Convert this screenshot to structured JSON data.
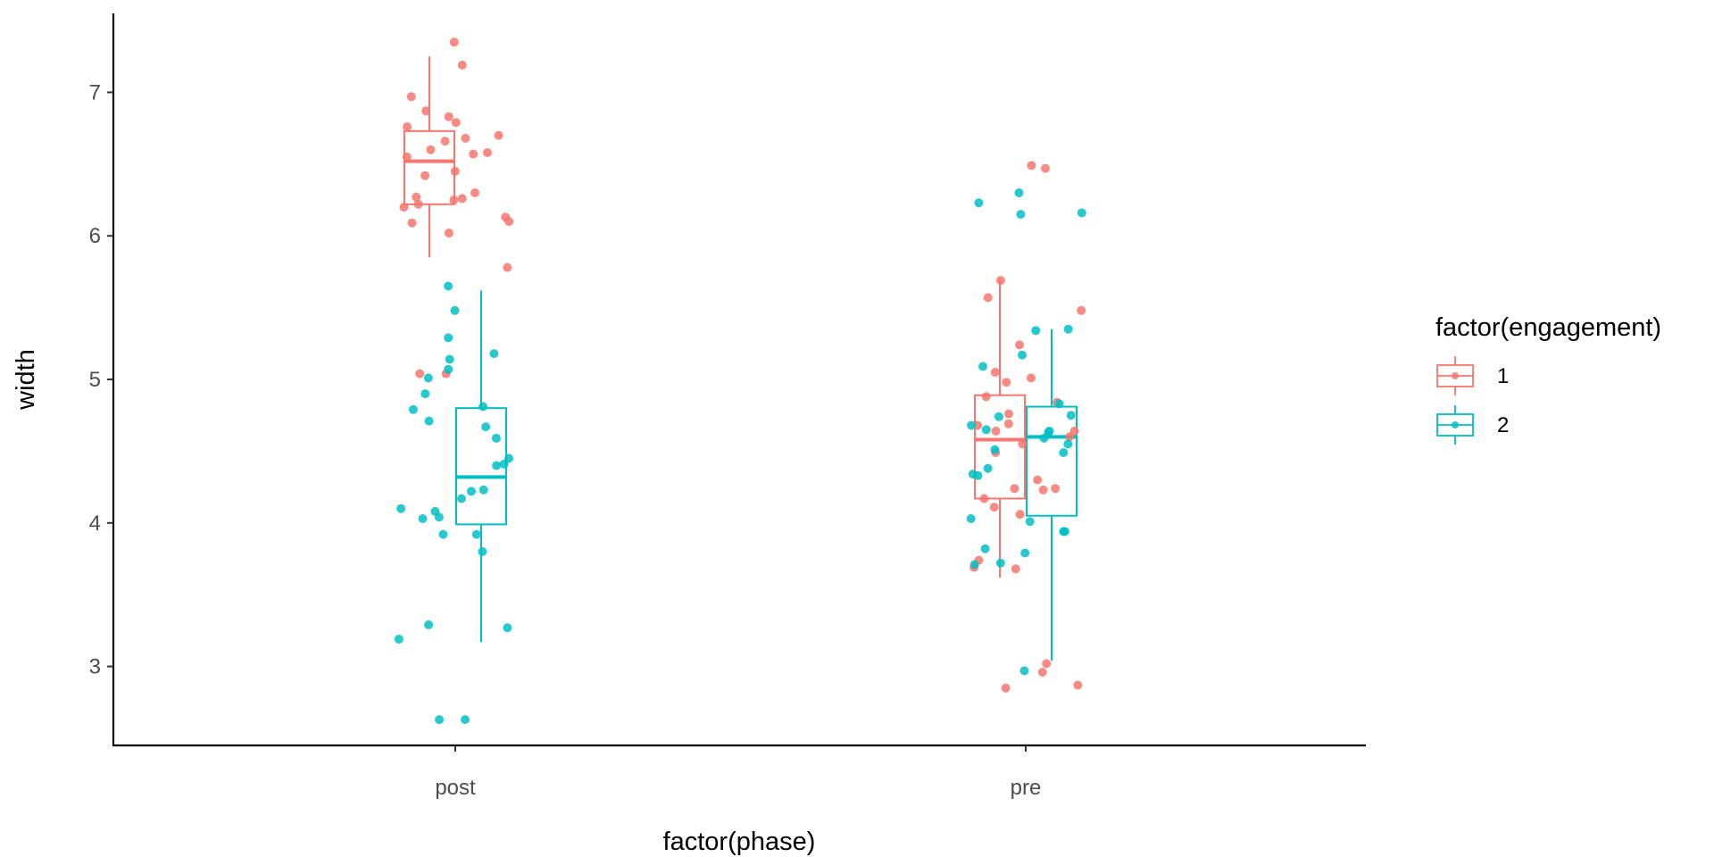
{
  "chart_data": {
    "type": "boxplot",
    "xlabel": "factor(phase)",
    "ylabel": "width",
    "categories": [
      "post",
      "pre"
    ],
    "ylim": [
      2.45,
      7.55
    ],
    "yticks": [
      3,
      4,
      5,
      6,
      7
    ],
    "grid": false,
    "legend": {
      "title": "factor(engagement)",
      "position": "right"
    },
    "series": [
      {
        "name": "1",
        "color": "#F8766D",
        "boxes": [
          {
            "category": "post",
            "lower_whisker": 5.85,
            "q1": 6.22,
            "median": 6.52,
            "q3": 6.73,
            "upper_whisker": 7.25
          },
          {
            "category": "pre",
            "lower_whisker": 3.62,
            "q1": 4.17,
            "median": 4.58,
            "q3": 4.89,
            "upper_whisker": 5.7
          }
        ],
        "points": [
          {
            "category": "post",
            "values": [
              7.35,
              7.19,
              6.97,
              6.87,
              6.83,
              6.79,
              6.76,
              6.7,
              6.68,
              6.66,
              6.6,
              6.58,
              6.57,
              6.55,
              6.45,
              6.42,
              6.3,
              6.27,
              6.26,
              6.25,
              6.22,
              6.2,
              6.13,
              6.1,
              6.09,
              6.02,
              5.78,
              5.04,
              5.04
            ]
          },
          {
            "category": "pre",
            "values": [
              6.49,
              6.47,
              5.69,
              5.57,
              5.48,
              5.24,
              5.05,
              5.01,
              4.98,
              4.88,
              4.84,
              4.76,
              4.69,
              4.68,
              4.64,
              4.64,
              4.6,
              4.55,
              4.49,
              4.3,
              4.24,
              4.24,
              4.23,
              4.17,
              4.11,
              4.06,
              3.74,
              3.69,
              3.68,
              3.02,
              2.96,
              2.87,
              2.85
            ]
          }
        ]
      },
      {
        "name": "2",
        "color": "#00BFC4",
        "boxes": [
          {
            "category": "post",
            "lower_whisker": 3.17,
            "q1": 3.99,
            "median": 4.32,
            "q3": 4.8,
            "upper_whisker": 5.62
          },
          {
            "category": "pre",
            "lower_whisker": 3.04,
            "q1": 4.05,
            "median": 4.6,
            "q3": 4.81,
            "upper_whisker": 5.35
          }
        ],
        "points": [
          {
            "category": "post",
            "values": [
              5.65,
              5.48,
              5.29,
              5.18,
              5.14,
              5.07,
              5.01,
              4.9,
              4.81,
              4.79,
              4.71,
              4.67,
              4.59,
              4.45,
              4.41,
              4.4,
              4.23,
              4.22,
              4.17,
              4.1,
              4.08,
              4.04,
              4.03,
              3.92,
              3.92,
              3.8,
              3.29,
              3.27,
              3.19,
              2.63,
              2.63
            ]
          },
          {
            "category": "pre",
            "values": [
              6.3,
              6.23,
              6.16,
              6.15,
              5.35,
              5.34,
              5.17,
              5.09,
              4.83,
              4.75,
              4.74,
              4.68,
              4.65,
              4.64,
              4.63,
              4.59,
              4.55,
              4.51,
              4.49,
              4.38,
              4.34,
              4.33,
              4.03,
              4.01,
              3.94,
              3.94,
              3.82,
              3.79,
              3.71,
              3.72,
              2.97
            ]
          }
        ]
      }
    ]
  }
}
